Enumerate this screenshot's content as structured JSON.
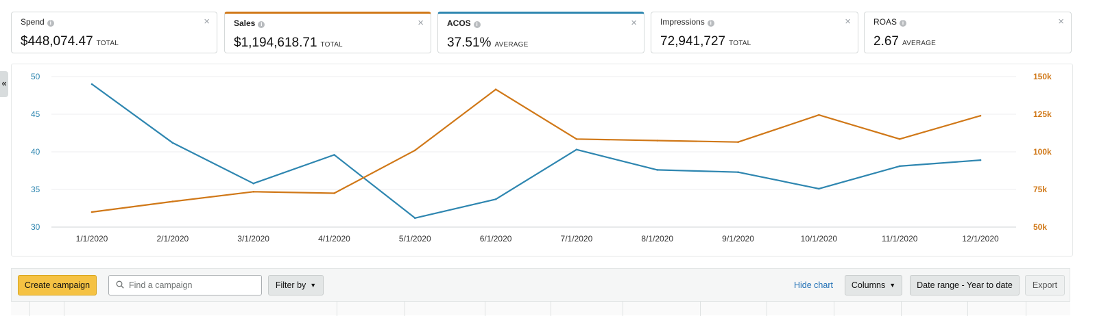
{
  "metrics": [
    {
      "name": "Spend",
      "value": "$448,074.47",
      "kind": "TOTAL"
    },
    {
      "name": "Sales",
      "value": "$1,194,618.71",
      "kind": "TOTAL"
    },
    {
      "name": "ACOS",
      "value": "37.51%",
      "kind": "AVERAGE"
    },
    {
      "name": "Impressions",
      "value": "72,941,727",
      "kind": "TOTAL"
    },
    {
      "name": "ROAS",
      "value": "2.67",
      "kind": "AVERAGE"
    }
  ],
  "icons": {
    "info": "i",
    "close": "×",
    "collapse": "«",
    "search": "search-icon",
    "caret": "chevron-down-icon"
  },
  "colors": {
    "sales": "#d07818",
    "acos": "#2e86b0"
  },
  "toolbar": {
    "create_label": "Create campaign",
    "search_placeholder": "Find a campaign",
    "filter_label": "Filter by",
    "hide_chart_label": "Hide chart",
    "columns_label": "Columns",
    "date_range_label": "Date range - Year to date",
    "export_label": "Export"
  },
  "chart_data": {
    "type": "line",
    "categories": [
      "1/1/2020",
      "2/1/2020",
      "3/1/2020",
      "4/1/2020",
      "5/1/2020",
      "6/1/2020",
      "7/1/2020",
      "8/1/2020",
      "9/1/2020",
      "10/1/2020",
      "11/1/2020",
      "12/1/2020"
    ],
    "left_axis": {
      "ticks": [
        "50",
        "45",
        "40",
        "35",
        "30"
      ],
      "range": [
        30,
        50
      ]
    },
    "right_axis": {
      "ticks": [
        "150k",
        "125k",
        "100k",
        "75k",
        "50k"
      ],
      "range": [
        50000,
        150000
      ]
    },
    "series": [
      {
        "name": "ACOS",
        "axis": "left",
        "color": "#2e86b0",
        "values": [
          49,
          41.2,
          35.8,
          39.6,
          31.2,
          33.7,
          40.3,
          37.6,
          37.3,
          35.1,
          38.1,
          38.9
        ]
      },
      {
        "name": "Sales",
        "axis": "right",
        "color": "#d07818",
        "values": [
          60000,
          67000,
          73500,
          72500,
          101000,
          141500,
          108500,
          107500,
          106500,
          124500,
          108500,
          124000
        ]
      }
    ]
  }
}
